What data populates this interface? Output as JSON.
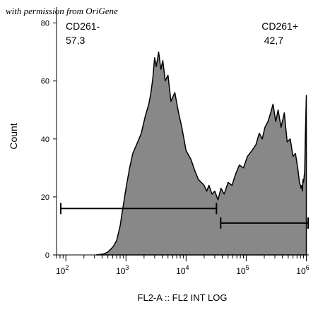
{
  "watermark": "with permission from OriGene",
  "chart_data": {
    "type": "area",
    "xlabel": "FL2-A :: FL2 INT LOG",
    "ylabel": "Count",
    "x_scale": "log",
    "xlim": [
      70,
      1100000
    ],
    "ylim": [
      0,
      85
    ],
    "x_ticks": [
      100,
      1000,
      10000,
      100000,
      1000000
    ],
    "x_tick_labels": [
      {
        "base": "10",
        "exp": "2"
      },
      {
        "base": "10",
        "exp": "3"
      },
      {
        "base": "10",
        "exp": "4"
      },
      {
        "base": "10",
        "exp": "5"
      },
      {
        "base": "10",
        "exp": "6"
      }
    ],
    "y_ticks": [
      0,
      20,
      40,
      60,
      80
    ],
    "y_tick_labels": [
      "0",
      "20",
      "40",
      "60",
      "80"
    ],
    "fill_color": "#888888",
    "grid": false,
    "series": [
      {
        "x": [
          320,
          420,
          500,
          560,
          620,
          700,
          800,
          900,
          1000,
          1150,
          1300,
          1500,
          1800,
          2100,
          2400,
          2600,
          2800,
          3000,
          3200,
          3500,
          3800,
          4100,
          4500,
          5000,
          5600,
          6500,
          7500,
          8500,
          10000,
          12000,
          14000,
          16000,
          18000,
          20000,
          22000,
          24000,
          27000,
          30000,
          34000,
          38000,
          43000,
          50000,
          58000,
          67000,
          77000,
          90000,
          105000,
          125000,
          145000,
          165000,
          185000,
          205000,
          230000,
          255000,
          280000,
          310000,
          340000,
          380000,
          430000,
          480000,
          540000,
          600000,
          660000,
          720000,
          770000,
          800000,
          820000,
          840000,
          860000,
          880000,
          900000,
          920000,
          940000,
          960000,
          1000000
        ],
        "y": [
          0,
          0.3,
          1,
          2,
          3,
          5,
          10,
          17,
          23,
          30,
          35,
          38,
          42,
          48,
          52,
          56,
          61,
          68,
          65,
          70,
          64,
          67,
          60,
          62,
          53,
          56,
          49,
          44,
          36,
          33,
          29,
          26,
          25,
          24,
          22,
          24,
          21,
          22,
          19,
          23,
          21,
          25,
          24,
          28,
          31,
          30,
          34,
          36,
          38,
          42,
          40,
          44,
          46,
          49,
          52,
          46,
          50,
          44,
          49,
          39,
          40,
          34,
          35,
          30,
          25,
          24,
          23,
          24,
          22,
          26,
          25,
          27,
          29,
          40,
          55
        ]
      }
    ],
    "gates": [
      {
        "name": "CD261-",
        "value": "57,3",
        "x_range": [
          70,
          32000
        ],
        "y": 16
      },
      {
        "name": "CD261+",
        "value": "42,7",
        "x_range": [
          32000,
          1100000
        ],
        "y": 11
      }
    ]
  }
}
